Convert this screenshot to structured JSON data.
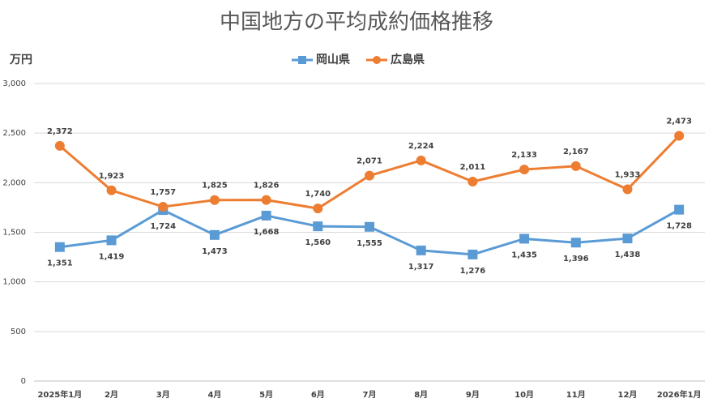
{
  "chart_data": {
    "type": "line",
    "title": "中国地方の平均成約価格推移",
    "y_label": "万円",
    "categories": [
      "2025年1月",
      "2月",
      "3月",
      "4月",
      "5月",
      "6月",
      "7月",
      "8月",
      "9月",
      "10月",
      "11月",
      "12月",
      "2026年1月"
    ],
    "series": [
      {
        "name": "岡山県",
        "color": "#5b9bd5",
        "marker": "square",
        "values": [
          1351,
          1419,
          1724,
          1473,
          1668,
          1560,
          1555,
          1317,
          1276,
          1435,
          1396,
          1438,
          1728
        ],
        "value_labels": [
          "1,351",
          "1,419",
          "1,724",
          "1,473",
          "1,668",
          "1,560",
          "1,555",
          "1,317",
          "1,276",
          "1,435",
          "1,396",
          "1,438",
          "1,728"
        ]
      },
      {
        "name": "広島県",
        "color": "#ed7d31",
        "marker": "circle",
        "values": [
          2372,
          1923,
          1757,
          1825,
          1826,
          1740,
          2071,
          2224,
          2011,
          2133,
          2167,
          1933,
          2473
        ],
        "value_labels": [
          "2,372",
          "1,923",
          "1,757",
          "1,825",
          "1,826",
          "1,740",
          "2,071",
          "2,224",
          "2,011",
          "2,133",
          "2,167",
          "1,933",
          "2,473"
        ]
      }
    ],
    "ylim": [
      0,
      3000
    ],
    "yticks": [
      0,
      500,
      {
        "value": 1000,
        "label": "1,000"
      },
      {
        "value": 1500,
        "label": "1,500"
      },
      {
        "value": 2000,
        "label": "2,000"
      },
      {
        "value": 2500,
        "label": "2,500"
      },
      {
        "value": 3000,
        "label": "3,000"
      }
    ],
    "grid": true,
    "legend": "top"
  }
}
